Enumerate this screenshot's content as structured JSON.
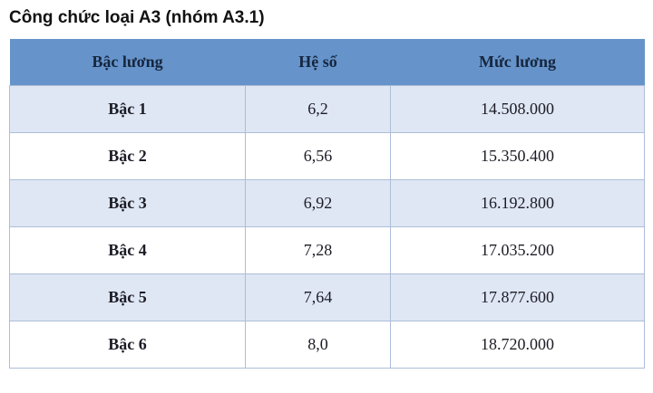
{
  "title": "Công chức loại A3 (nhóm A3.1)",
  "table": {
    "columns": [
      "Bậc lương",
      "Hệ số",
      "Mức lương"
    ],
    "rows": [
      {
        "level": "Bậc 1",
        "coefficient": "6,2",
        "salary": "14.508.000"
      },
      {
        "level": "Bậc 2",
        "coefficient": "6,56",
        "salary": "15.350.400"
      },
      {
        "level": "Bậc 3",
        "coefficient": "6,92",
        "salary": "16.192.800"
      },
      {
        "level": "Bậc 4",
        "coefficient": "7,28",
        "salary": "17.035.200"
      },
      {
        "level": "Bậc 5",
        "coefficient": "7,64",
        "salary": "17.877.600"
      },
      {
        "level": "Bậc 6",
        "coefficient": "8,0",
        "salary": "18.720.000"
      }
    ],
    "colors": {
      "header_bg": "#6694ca",
      "header_text": "#16263f",
      "row_alt_bg": "#dfe7f4",
      "row_bg": "#ffffff",
      "border": "#aebdd8",
      "body_text": "#1c1c26",
      "title_text": "#121212"
    }
  }
}
